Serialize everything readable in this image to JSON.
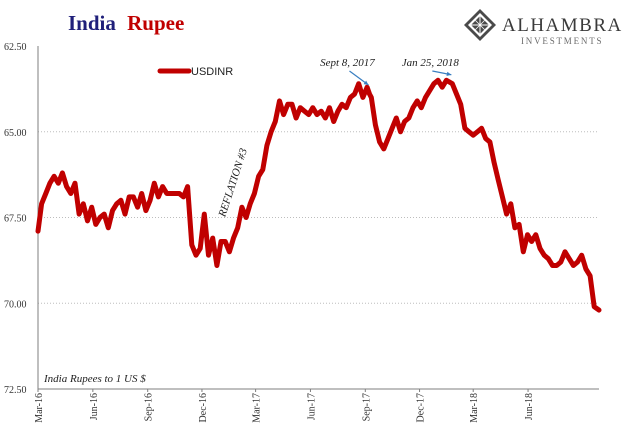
{
  "title": {
    "part1": "India",
    "part2": "Rupee",
    "color1": "#1f1f7a",
    "color2": "#c00000"
  },
  "logo": {
    "name": "ALHAMBRA",
    "subtitle": "INVESTMENTS",
    "icon": "alhambra-diamond-lattice-icon"
  },
  "colors": {
    "series": "#c00000",
    "annotation_arrow": "#3a7fc1",
    "grid": "#bdbdbd"
  },
  "chart_data": {
    "type": "line",
    "title": "India Rupee",
    "xlabel": "",
    "ylabel": "",
    "y_axis_inverted": true,
    "ylim": [
      62.5,
      72.5
    ],
    "yticks": [
      "62.50",
      "65.00",
      "67.50",
      "70.00",
      "72.50"
    ],
    "xlim": [
      "2016-03-01",
      "2018-09-28"
    ],
    "xticks": [
      {
        "date": "2016-03-01",
        "label": "Mar-16"
      },
      {
        "date": "2016-06-01",
        "label": "Jun-16"
      },
      {
        "date": "2016-09-01",
        "label": "Sep-16"
      },
      {
        "date": "2016-12-01",
        "label": "Dec-16"
      },
      {
        "date": "2017-03-01",
        "label": "Mar-17"
      },
      {
        "date": "2017-06-01",
        "label": "Jun-17"
      },
      {
        "date": "2017-09-01",
        "label": "Sep-17"
      },
      {
        "date": "2017-12-01",
        "label": "Dec-17"
      },
      {
        "date": "2018-03-01",
        "label": "Mar-18"
      },
      {
        "date": "2018-06-01",
        "label": "Jun-18"
      }
    ],
    "grid": "horizontal",
    "legend_position": "top-left",
    "series": [
      {
        "name": "USDINR",
        "x": [
          "2016-03-01",
          "2016-03-07",
          "2016-03-14",
          "2016-03-21",
          "2016-03-28",
          "2016-04-04",
          "2016-04-11",
          "2016-04-18",
          "2016-04-25",
          "2016-05-02",
          "2016-05-09",
          "2016-05-16",
          "2016-05-23",
          "2016-05-30",
          "2016-06-06",
          "2016-06-13",
          "2016-06-20",
          "2016-06-27",
          "2016-07-04",
          "2016-07-11",
          "2016-07-18",
          "2016-07-25",
          "2016-08-01",
          "2016-08-08",
          "2016-08-15",
          "2016-08-22",
          "2016-08-29",
          "2016-09-05",
          "2016-09-12",
          "2016-09-19",
          "2016-09-26",
          "2016-10-03",
          "2016-10-10",
          "2016-10-17",
          "2016-10-24",
          "2016-10-31",
          "2016-11-07",
          "2016-11-14",
          "2016-11-21",
          "2016-11-28",
          "2016-12-05",
          "2016-12-12",
          "2016-12-19",
          "2016-12-26",
          "2017-01-02",
          "2017-01-09",
          "2017-01-16",
          "2017-01-23",
          "2017-01-30",
          "2017-02-06",
          "2017-02-13",
          "2017-02-20",
          "2017-02-27",
          "2017-03-06",
          "2017-03-13",
          "2017-03-20",
          "2017-03-27",
          "2017-04-03",
          "2017-04-10",
          "2017-04-17",
          "2017-04-24",
          "2017-05-01",
          "2017-05-08",
          "2017-05-15",
          "2017-05-22",
          "2017-05-29",
          "2017-06-05",
          "2017-06-12",
          "2017-06-19",
          "2017-06-26",
          "2017-07-03",
          "2017-07-10",
          "2017-07-17",
          "2017-07-24",
          "2017-07-31",
          "2017-08-07",
          "2017-08-14",
          "2017-08-21",
          "2017-08-28",
          "2017-09-04",
          "2017-09-08",
          "2017-09-11",
          "2017-09-18",
          "2017-09-25",
          "2017-10-02",
          "2017-10-09",
          "2017-10-16",
          "2017-10-23",
          "2017-10-30",
          "2017-11-06",
          "2017-11-13",
          "2017-11-20",
          "2017-11-27",
          "2017-12-04",
          "2017-12-11",
          "2017-12-18",
          "2017-12-25",
          "2018-01-01",
          "2018-01-08",
          "2018-01-15",
          "2018-01-25",
          "2018-02-01",
          "2018-02-08",
          "2018-02-15",
          "2018-02-22",
          "2018-03-01",
          "2018-03-08",
          "2018-03-15",
          "2018-03-22",
          "2018-03-29",
          "2018-04-05",
          "2018-04-12",
          "2018-04-19",
          "2018-04-26",
          "2018-05-03",
          "2018-05-10",
          "2018-05-17",
          "2018-05-24",
          "2018-05-31",
          "2018-06-07",
          "2018-06-14",
          "2018-06-21",
          "2018-06-28",
          "2018-07-05",
          "2018-07-12",
          "2018-07-19",
          "2018-07-26",
          "2018-08-02",
          "2018-08-09",
          "2018-08-16",
          "2018-08-23",
          "2018-08-30",
          "2018-09-06",
          "2018-09-13",
          "2018-09-20",
          "2018-09-28"
        ],
        "y": [
          67.9,
          67.1,
          66.8,
          66.5,
          66.3,
          66.5,
          66.2,
          66.6,
          66.8,
          66.5,
          67.4,
          67.1,
          67.6,
          67.2,
          67.7,
          67.5,
          67.4,
          67.8,
          67.3,
          67.1,
          67.0,
          67.4,
          66.9,
          66.9,
          67.2,
          66.8,
          67.3,
          67.0,
          66.5,
          66.9,
          66.6,
          66.8,
          66.8,
          66.8,
          66.8,
          66.9,
          66.6,
          68.3,
          68.6,
          68.4,
          67.4,
          68.6,
          68.1,
          68.9,
          68.2,
          68.2,
          68.5,
          68.1,
          67.8,
          67.2,
          67.5,
          67.1,
          66.8,
          66.3,
          66.1,
          65.4,
          65.0,
          64.7,
          64.1,
          64.5,
          64.2,
          64.2,
          64.6,
          64.3,
          64.4,
          64.5,
          64.3,
          64.5,
          64.4,
          64.6,
          64.3,
          64.7,
          64.4,
          64.2,
          64.3,
          64.0,
          63.9,
          63.6,
          64.0,
          63.7,
          63.9,
          64.0,
          64.8,
          65.3,
          65.5,
          65.2,
          64.9,
          64.6,
          65.0,
          64.7,
          64.6,
          64.3,
          64.1,
          64.3,
          64.0,
          63.8,
          63.6,
          63.5,
          63.7,
          63.5,
          63.6,
          63.9,
          64.2,
          64.9,
          65.0,
          65.1,
          65.0,
          64.9,
          65.2,
          65.3,
          65.9,
          66.4,
          66.9,
          67.4,
          67.1,
          67.8,
          67.7,
          68.5,
          68.0,
          68.2,
          68.0,
          68.4,
          68.6,
          68.7,
          68.9,
          68.9,
          68.8,
          68.5,
          68.7,
          68.9,
          68.8,
          68.6,
          69.0,
          69.2,
          70.1,
          70.2
        ]
      }
    ],
    "annotations": [
      {
        "text": "Sept 8, 2017",
        "date": "2017-09-08",
        "value": 63.9
      },
      {
        "text": "Jan 25, 2018",
        "date": "2018-01-25",
        "value": 63.6
      },
      {
        "text": "REFLATION #3",
        "date": "2017-01-02",
        "value": 67.5,
        "rotated": true
      }
    ],
    "note": "India Rupees to 1 US $"
  }
}
